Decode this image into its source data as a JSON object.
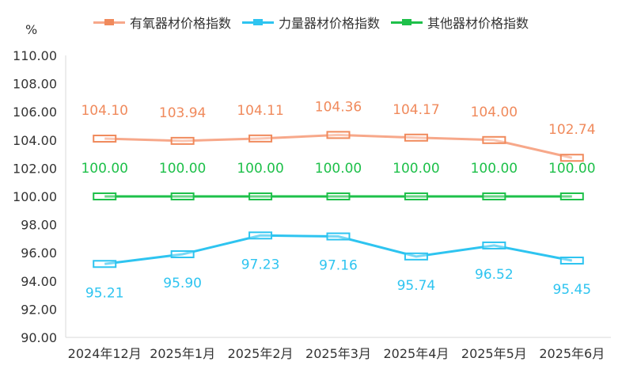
{
  "unit_label": "%",
  "chart_data": {
    "type": "line",
    "categories": [
      "2024年12月",
      "2025年1月",
      "2025年2月",
      "2025年3月",
      "2025年4月",
      "2025年5月",
      "2025年6月"
    ],
    "ylim": [
      90,
      110
    ],
    "yticks": [
      "90.00",
      "92.00",
      "94.00",
      "96.00",
      "98.00",
      "100.00",
      "102.00",
      "104.00",
      "106.00",
      "108.00",
      "110.00"
    ],
    "ylabel": "%",
    "series": [
      {
        "name": "有氧器材价格指数",
        "values": [
          104.1,
          103.94,
          104.11,
          104.36,
          104.17,
          104.0,
          102.74
        ],
        "labels": [
          "104.10",
          "103.94",
          "104.11",
          "104.36",
          "104.17",
          "104.00",
          "102.74"
        ],
        "line_color": "#f7a88a",
        "marker_color": "#f08a5c",
        "label_color": "#f08a5c",
        "label_pos": "above"
      },
      {
        "name": "力量器材价格指数",
        "values": [
          95.21,
          95.9,
          97.23,
          97.16,
          95.74,
          96.52,
          95.45
        ],
        "labels": [
          "95.21",
          "95.90",
          "97.23",
          "97.16",
          "95.74",
          "96.52",
          "95.45"
        ],
        "line_color": "#2ec4f0",
        "marker_color": "#2ec4f0",
        "label_color": "#2ec4f0",
        "label_pos": "below"
      },
      {
        "name": "其他器材价格指数",
        "values": [
          100.0,
          100.0,
          100.0,
          100.0,
          100.0,
          100.0,
          100.0
        ],
        "labels": [
          "100.00",
          "100.00",
          "100.00",
          "100.00",
          "100.00",
          "100.00",
          "100.00"
        ],
        "line_color": "#1ec04a",
        "marker_color": "#1ec04a",
        "label_color": "#1ec04a",
        "label_pos": "above"
      }
    ],
    "grid": false,
    "legend_position": "top"
  }
}
